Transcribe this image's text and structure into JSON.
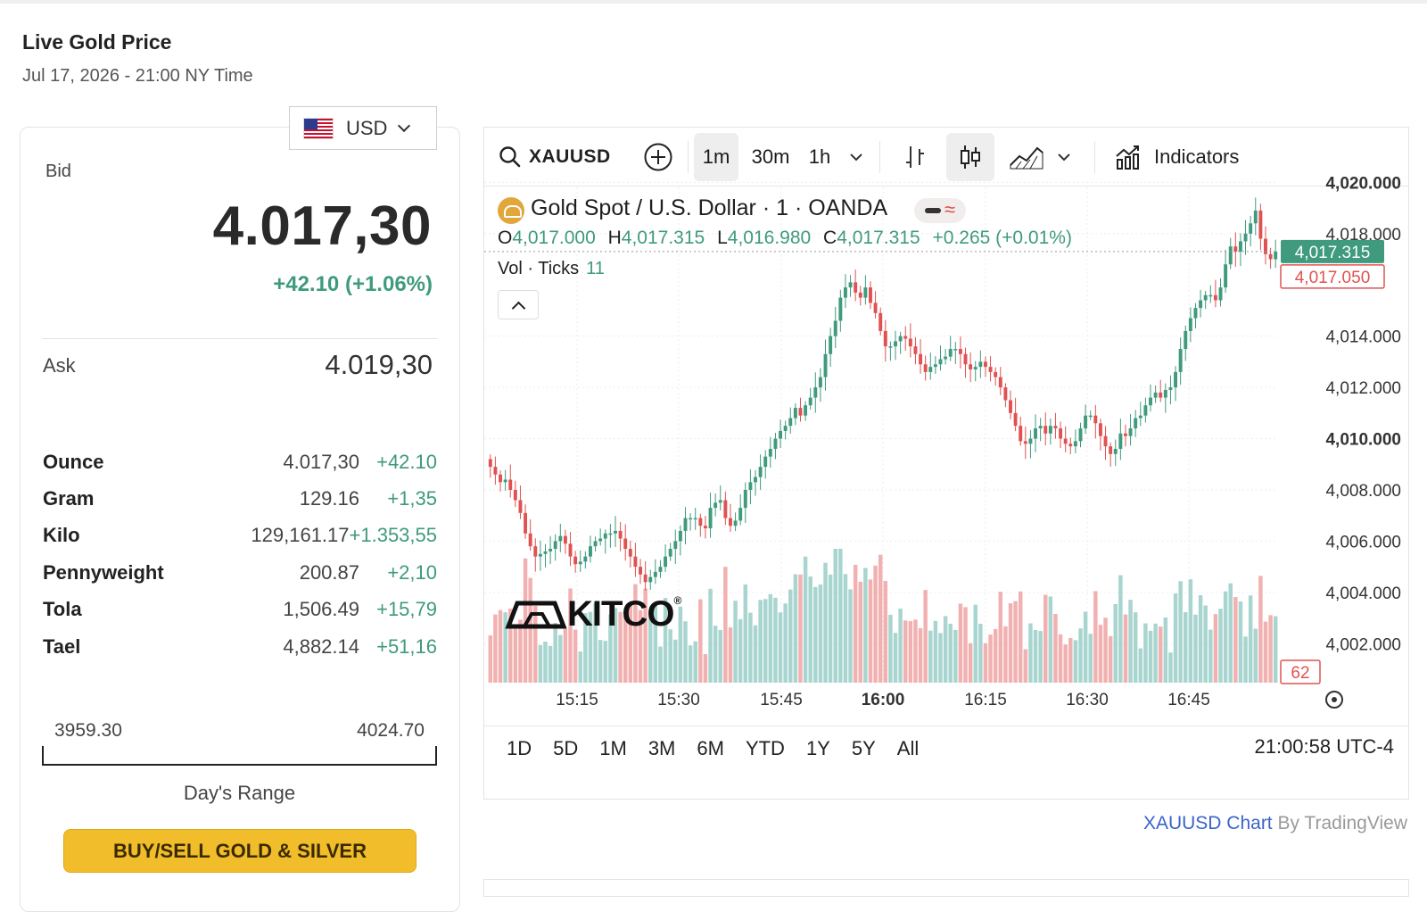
{
  "page": {
    "title": "Live Gold Price",
    "subtitle": "Jul 17, 2026 - 21:00 NY Time"
  },
  "currency": {
    "selected": "USD",
    "flag_icon": "us-flag-icon"
  },
  "quote": {
    "bid_label": "Bid",
    "bid_value": "4.017,30",
    "bid_change": "+42.10 (+1.06%)",
    "ask_label": "Ask",
    "ask_value": "4.019,30"
  },
  "units": [
    {
      "name": "Ounce",
      "price": "4.017,30",
      "change": "+42.10"
    },
    {
      "name": "Gram",
      "price": "129.16",
      "change": "+1,35"
    },
    {
      "name": "Kilo",
      "price": "129,161.17",
      "change": "+1.353,55"
    },
    {
      "name": "Pennyweight",
      "price": "200.87",
      "change": "+2,10"
    },
    {
      "name": "Tola",
      "price": "1,506.49",
      "change": "+15,79"
    },
    {
      "name": "Tael",
      "price": "4,882.14",
      "change": "+51,16"
    }
  ],
  "day_range": {
    "low": "3959.30",
    "high": "4024.70",
    "caption": "Day's Range"
  },
  "buy_button": "BUY/SELL GOLD & SILVER",
  "toolbar": {
    "symbol": "XAUUSD",
    "timeframes": [
      "1m",
      "30m",
      "1h"
    ],
    "active_timeframe": "1m",
    "indicators_label": "Indicators"
  },
  "chart_legend": {
    "title": "Gold Spot / U.S. Dollar · 1 · OANDA",
    "o_label": "O",
    "o": "4,017.000",
    "h_label": "H",
    "h": "4,017.315",
    "l_label": "L",
    "l": "4,016.980",
    "c_label": "C",
    "c": "4,017.315",
    "change": "+0.265 (+0.01%)",
    "vol_label": "Vol · Ticks",
    "vol_value": "11"
  },
  "watermark": "KITCO",
  "range_buttons": [
    "1D",
    "5D",
    "1M",
    "3M",
    "6M",
    "YTD",
    "1Y",
    "5Y",
    "All"
  ],
  "clock": "21:00:58 UTC-4",
  "attribution": {
    "link": "XAUUSD Chart",
    "suffix": " By TradingView"
  },
  "colors": {
    "up": "#3f9a7e",
    "down": "#e05252",
    "vol_up": "#a8d5cf",
    "vol_down": "#f2b1b1",
    "accent": "#f2bd2b"
  },
  "chart_data": {
    "type": "candlestick",
    "symbol": "XAUUSD",
    "interval": "1m",
    "y_ticks": [
      "4,020.000",
      "4,018.000",
      "4,014.000",
      "4,012.000",
      "4,010.000",
      "4,008.000",
      "4,006.000",
      "4,004.000",
      "4,002.000"
    ],
    "bold_y_ticks": [
      "4,020.000",
      "4,010.000"
    ],
    "x_ticks": [
      "15:15",
      "15:30",
      "15:45",
      "16:00",
      "16:15",
      "16:30",
      "16:45"
    ],
    "bold_x_tick": "16:00",
    "ylim": [
      4001.0,
      4020.5
    ],
    "last_price_label": "4,017.315",
    "prev_close_label": "4,017.050",
    "volume_label": "62",
    "close_series": [
      4008.9,
      4008.6,
      4008.3,
      4008.4,
      4008.0,
      4007.6,
      4007.1,
      4006.3,
      4005.8,
      4005.4,
      4005.5,
      4005.6,
      4005.7,
      4006.0,
      4006.2,
      4005.9,
      4005.4,
      4005.1,
      4005.2,
      4005.4,
      4005.8,
      4006.0,
      4006.1,
      4006.3,
      4006.3,
      4006.4,
      4006.1,
      4005.7,
      4005.4,
      4005.0,
      4004.7,
      4004.4,
      4004.6,
      4004.8,
      4005.0,
      4005.4,
      4005.7,
      4006.0,
      4006.4,
      4006.9,
      4006.9,
      4006.9,
      4006.6,
      4006.5,
      4007.3,
      4007.5,
      4007.6,
      4006.9,
      4006.6,
      4006.8,
      4007.3,
      4008.0,
      4008.3,
      4008.5,
      4008.9,
      4009.3,
      4009.6,
      4010.0,
      4010.3,
      4010.5,
      4010.8,
      4011.2,
      4010.9,
      4011.3,
      4011.6,
      4012.0,
      4012.4,
      4013.3,
      4014.0,
      4014.6,
      4015.5,
      4015.9,
      4016.1,
      4015.7,
      4015.5,
      4015.9,
      4015.3,
      4014.9,
      4014.2,
      4013.6,
      4013.6,
      4013.8,
      4014.0,
      4013.9,
      4013.6,
      4013.3,
      4012.9,
      4012.6,
      4012.8,
      4012.9,
      4013.1,
      4013.2,
      4013.5,
      4013.5,
      4013.3,
      4012.9,
      4012.7,
      4012.8,
      4013.0,
      4012.8,
      4012.6,
      4012.4,
      4012.0,
      4011.5,
      4011.0,
      4010.5,
      4009.9,
      4009.8,
      4010.0,
      4010.4,
      4010.5,
      4010.2,
      4010.5,
      4010.4,
      4010.0,
      4009.8,
      4009.7,
      4009.9,
      4010.4,
      4010.9,
      4010.9,
      4010.6,
      4010.1,
      4009.7,
      4009.4,
      4009.6,
      4010.2,
      4010.1,
      4010.4,
      4010.8,
      4010.9,
      4011.3,
      4011.6,
      4011.8,
      4011.6,
      4011.9,
      4012.0,
      4012.6,
      4013.5,
      4014.2,
      4014.7,
      4015.1,
      4015.4,
      4015.6,
      4015.6,
      4015.4,
      4015.9,
      4016.8,
      4017.5,
      4017.3,
      4017.7,
      4018.0,
      4018.4,
      4018.9,
      4017.8,
      4017.2,
      4017.0,
      4017.3
    ]
  }
}
